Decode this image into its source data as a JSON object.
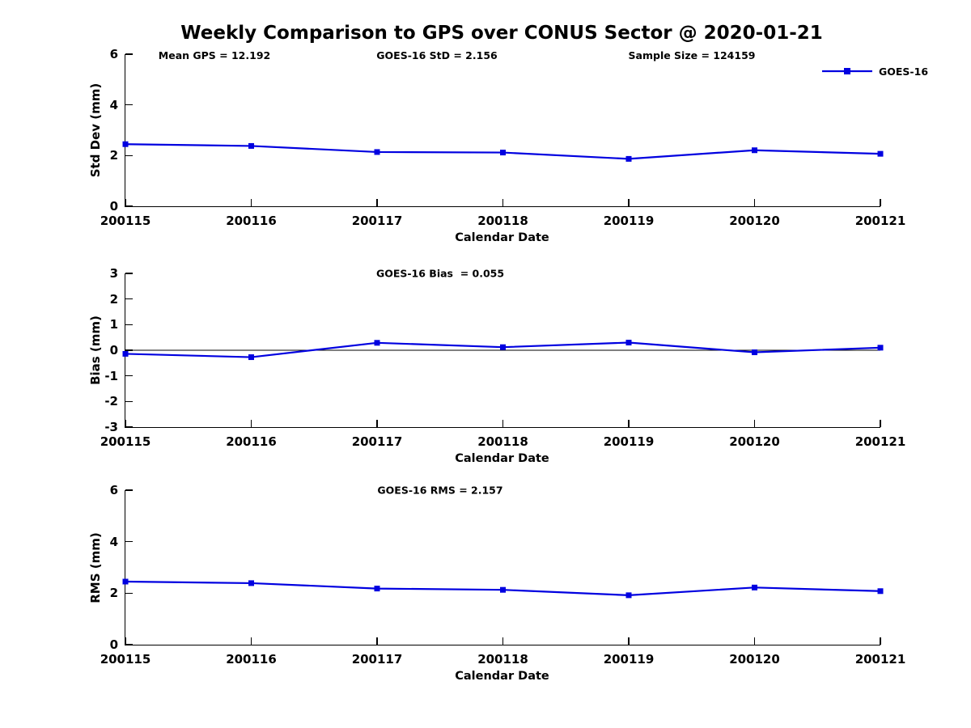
{
  "title": "Weekly Comparison to GPS over CONUS Sector @ 2020-01-21",
  "annotations": {
    "mean_gps": "Mean GPS = 12.192",
    "std": "GOES-16 StD = 2.156",
    "sample_size": "Sample Size = 124159"
  },
  "legend": {
    "label": "GOES-16"
  },
  "xlabel": "Calendar Date",
  "colors": {
    "line": "#0000e0",
    "axis": "#000000",
    "zero_line": "#000000"
  },
  "chart_data": [
    {
      "type": "line",
      "ylabel": "Std Dev (mm)",
      "annotation": "",
      "categories": [
        "200115",
        "200116",
        "200117",
        "200118",
        "200119",
        "200120",
        "200121"
      ],
      "series": [
        {
          "name": "GOES-16",
          "values": [
            2.45,
            2.38,
            2.14,
            2.12,
            1.87,
            2.21,
            2.07
          ]
        }
      ],
      "ylim": [
        0,
        6
      ],
      "yticks": [
        0,
        2,
        4,
        6
      ],
      "zero_line": false,
      "grid": false,
      "legend_position": "top-right-outside"
    },
    {
      "type": "line",
      "ylabel": "Bias (mm)",
      "annotation": "GOES-16 Bias  = 0.055",
      "categories": [
        "200115",
        "200116",
        "200117",
        "200118",
        "200119",
        "200120",
        "200121"
      ],
      "series": [
        {
          "name": "GOES-16",
          "values": [
            -0.14,
            -0.27,
            0.29,
            0.12,
            0.3,
            -0.08,
            0.1
          ]
        }
      ],
      "ylim": [
        -3,
        3
      ],
      "yticks": [
        -3,
        -2,
        -1,
        0,
        1,
        2,
        3
      ],
      "zero_line": true,
      "grid": false
    },
    {
      "type": "line",
      "ylabel": "RMS (mm)",
      "annotation": "GOES-16 RMS = 2.157",
      "categories": [
        "200115",
        "200116",
        "200117",
        "200118",
        "200119",
        "200120",
        "200121"
      ],
      "series": [
        {
          "name": "GOES-16",
          "values": [
            2.45,
            2.39,
            2.18,
            2.13,
            1.92,
            2.22,
            2.08
          ]
        }
      ],
      "ylim": [
        0,
        6
      ],
      "yticks": [
        0,
        2,
        4,
        6
      ],
      "zero_line": false,
      "grid": false
    }
  ]
}
